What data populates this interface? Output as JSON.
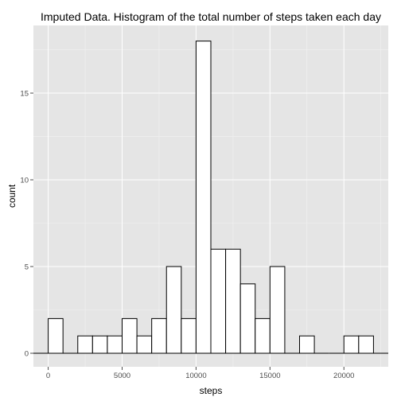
{
  "chart_data": {
    "type": "bar",
    "title": "Imputed Data. Histogram of the total number of steps taken each day",
    "xlabel": "steps",
    "ylabel": "count",
    "binwidth": 1000,
    "xlim": [
      -1000,
      23000
    ],
    "ylim": [
      0,
      18.9
    ],
    "x_ticks": [
      0,
      5000,
      10000,
      15000,
      20000
    ],
    "x_tick_labels": [
      "0",
      "5000",
      "10000",
      "15000",
      "20000"
    ],
    "y_ticks": [
      0,
      5,
      10,
      15
    ],
    "y_tick_labels": [
      "0",
      "5",
      "10",
      "15"
    ],
    "bins": [
      {
        "x": -500,
        "count": 0
      },
      {
        "x": 500,
        "count": 2
      },
      {
        "x": 1500,
        "count": 0
      },
      {
        "x": 2500,
        "count": 1
      },
      {
        "x": 3500,
        "count": 1
      },
      {
        "x": 4500,
        "count": 1
      },
      {
        "x": 5500,
        "count": 2
      },
      {
        "x": 6500,
        "count": 1
      },
      {
        "x": 7500,
        "count": 2
      },
      {
        "x": 8500,
        "count": 5
      },
      {
        "x": 9500,
        "count": 2
      },
      {
        "x": 10500,
        "count": 18
      },
      {
        "x": 11500,
        "count": 6
      },
      {
        "x": 12500,
        "count": 6
      },
      {
        "x": 13500,
        "count": 4
      },
      {
        "x": 14500,
        "count": 2
      },
      {
        "x": 15500,
        "count": 5
      },
      {
        "x": 16500,
        "count": 0
      },
      {
        "x": 17500,
        "count": 1
      },
      {
        "x": 18500,
        "count": 0
      },
      {
        "x": 19500,
        "count": 0
      },
      {
        "x": 20500,
        "count": 1
      },
      {
        "x": 21500,
        "count": 1
      },
      {
        "x": 22500,
        "count": 0
      }
    ],
    "colors": {
      "panel_background": "#e5e5e5",
      "bar_fill": "#ffffff",
      "bar_outline": "#000000",
      "grid": "#ffffff"
    }
  }
}
